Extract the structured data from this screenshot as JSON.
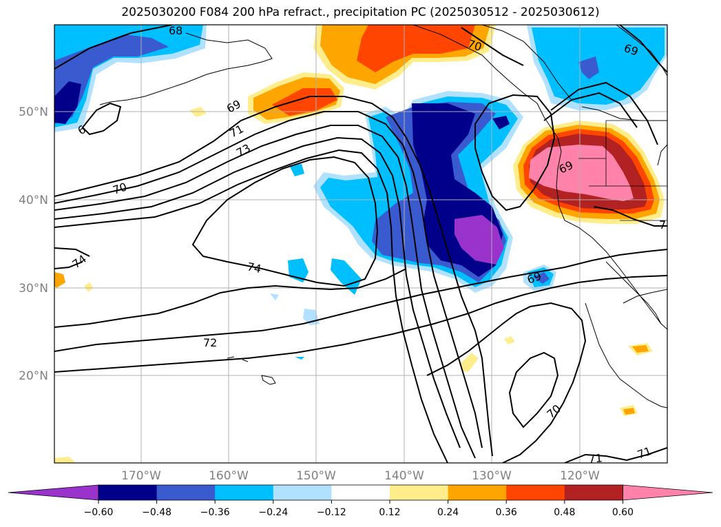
{
  "title": "2025030200 F084 200 hPa refract., precipitation PC (2025030512 - 2025030612)",
  "lat_labels": [
    "50°N",
    "40°N",
    "30°N",
    "20°N"
  ],
  "lon_labels": [
    "170°W",
    "160°W",
    "150°W",
    "140°W",
    "130°W",
    "120°W"
  ],
  "colorbar": {
    "ticks": [
      "−0.60",
      "−0.48",
      "−0.36",
      "−0.24",
      "−0.12",
      "0.12",
      "0.24",
      "0.36",
      "0.48",
      "0.60"
    ],
    "colors": [
      "#9933cc",
      "#00008b",
      "#3a5bcf",
      "#00bfff",
      "#b0e2ff",
      "#ffffff",
      "#ffec8b",
      "#ffa500",
      "#ff4500",
      "#b22222",
      "#ff82ab"
    ]
  },
  "contour_labels": [
    {
      "text": "68"
    },
    {
      "text": "70"
    },
    {
      "text": "69"
    },
    {
      "text": "69"
    },
    {
      "text": "6"
    },
    {
      "text": "71"
    },
    {
      "text": "73"
    },
    {
      "text": "70"
    },
    {
      "text": "69"
    },
    {
      "text": "74"
    },
    {
      "text": "74"
    },
    {
      "text": "69"
    },
    {
      "text": "72"
    },
    {
      "text": "70"
    },
    {
      "text": "71"
    },
    {
      "text": "71"
    },
    {
      "text": "7"
    }
  ]
}
